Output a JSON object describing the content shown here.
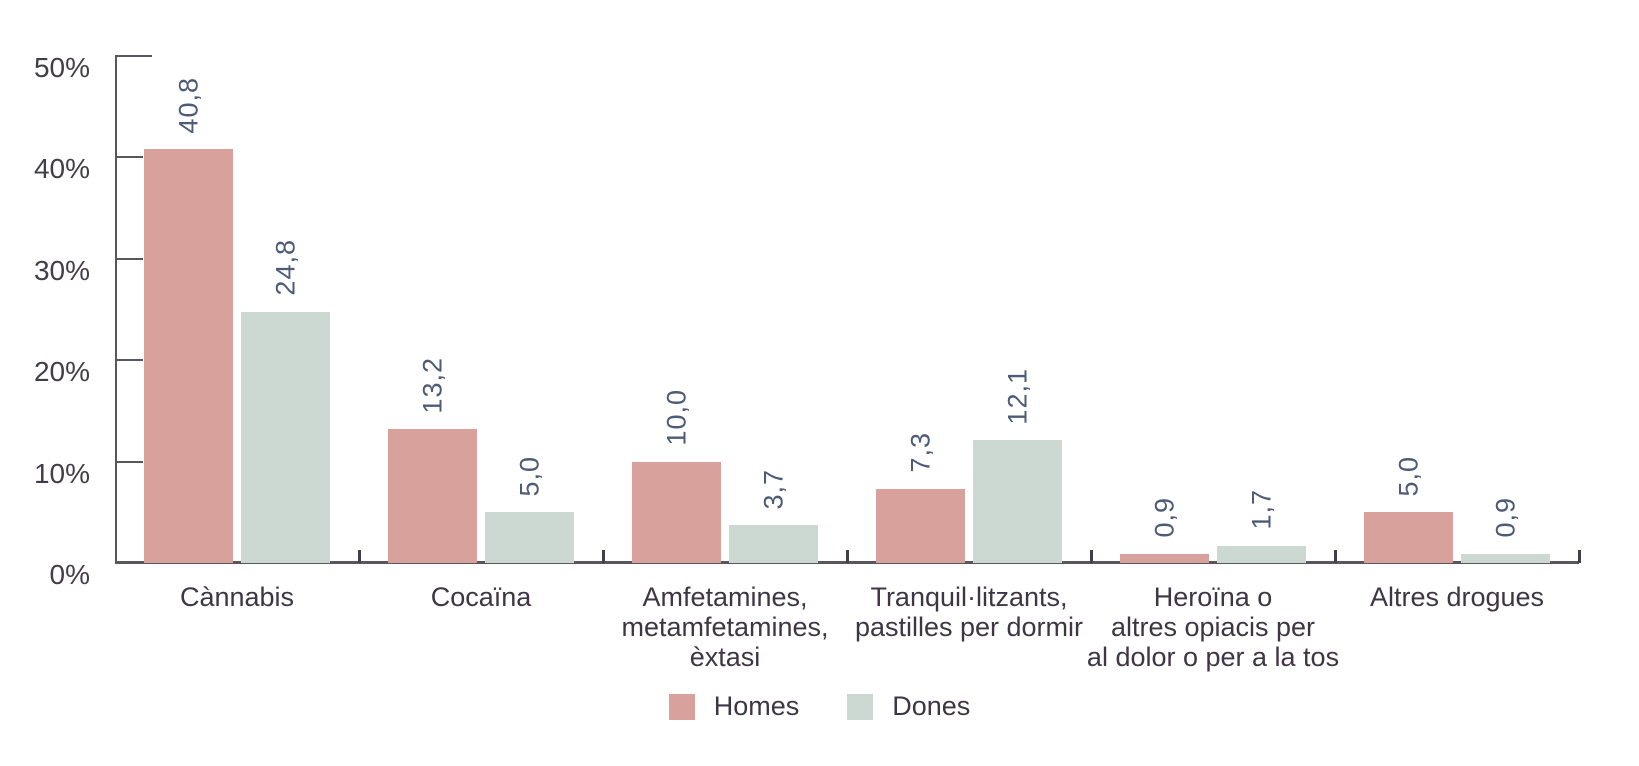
{
  "chart_data": {
    "type": "bar",
    "title": "",
    "xlabel": "",
    "ylabel": "",
    "ylim": [
      0,
      50
    ],
    "grid": false,
    "categories": [
      {
        "lines": [
          "Cànnabis"
        ]
      },
      {
        "lines": [
          "Cocaïna"
        ]
      },
      {
        "lines": [
          "Amfetamines,",
          "metamfetamines,",
          "èxtasi"
        ]
      },
      {
        "lines": [
          "Tranquil·litzants,",
          "pastilles per dormir"
        ]
      },
      {
        "lines": [
          "Heroïna o",
          "altres opiacis per",
          "al dolor o per a la tos"
        ]
      },
      {
        "lines": [
          "Altres drogues"
        ]
      }
    ],
    "series": [
      {
        "name": "Homes",
        "color": "#d9a19c",
        "values": [
          40.8,
          13.2,
          10.0,
          7.3,
          0.9,
          5.0
        ],
        "labels": [
          "40,8",
          "13,2",
          "10,0",
          "7,3",
          "0,9",
          "5,0"
        ]
      },
      {
        "name": "Dones",
        "color": "#ccd9d3",
        "values": [
          24.8,
          5.0,
          3.7,
          12.1,
          1.7,
          0.9
        ],
        "labels": [
          "24,8",
          "5,0",
          "3,7",
          "12,1",
          "1,7",
          "0,9"
        ]
      }
    ],
    "yticks": [
      {
        "value": 0,
        "label": "0%"
      },
      {
        "value": 10,
        "label": "10%"
      },
      {
        "value": 20,
        "label": "20%"
      },
      {
        "value": 30,
        "label": "30%"
      },
      {
        "value": 40,
        "label": "40%"
      },
      {
        "value": 50,
        "label": "50%"
      }
    ],
    "legend": {
      "position": "bottom",
      "items": [
        {
          "label": "Homes",
          "color": "#d9a19c"
        },
        {
          "label": "Dones",
          "color": "#ccd9d3"
        }
      ]
    },
    "colors": {
      "axis": "#5a565e",
      "category_tick": "#453e4a",
      "tick_label": "#453c4a",
      "category_label": "#3f3545",
      "value_label": "#4d5b77",
      "background": "#ffffff"
    }
  }
}
